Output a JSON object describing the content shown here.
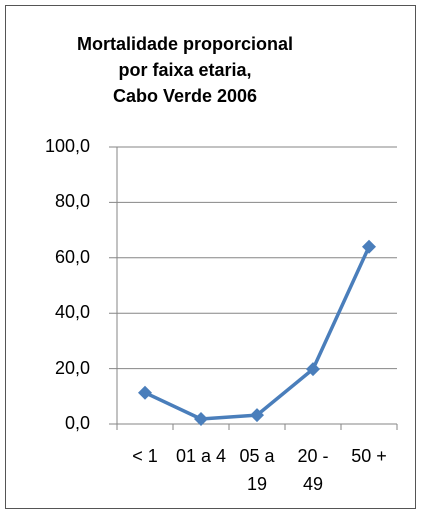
{
  "chart_data": {
    "type": "line",
    "title": [
      "Mortalidade proporcional",
      "por faixa etaria,",
      "Cabo Verde 2006"
    ],
    "categories": [
      "< 1",
      "01 a 4",
      "05 a 19",
      "20 - 49",
      "50 +"
    ],
    "series": [
      {
        "color": "#4a7ebb",
        "values": [
          11.3,
          1.8,
          3.2,
          19.8,
          64.0
        ]
      }
    ],
    "ylim": [
      0,
      100
    ],
    "yticks": [
      {
        "value": 0,
        "label": "0,0"
      },
      {
        "value": 20,
        "label": "20,0"
      },
      {
        "value": 40,
        "label": "40,0"
      },
      {
        "value": 60,
        "label": "60,0"
      },
      {
        "value": 80,
        "label": "80,0"
      },
      {
        "value": 100,
        "label": "100,0"
      }
    ],
    "grid": true
  }
}
